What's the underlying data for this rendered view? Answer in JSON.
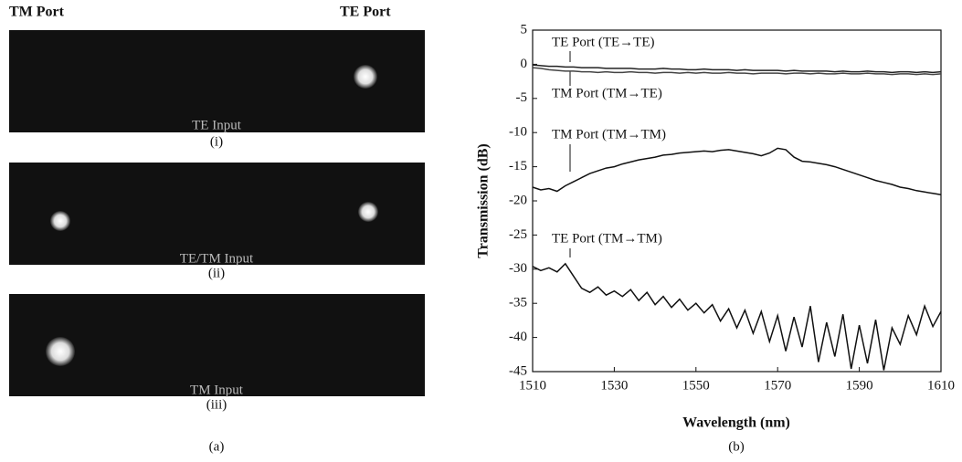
{
  "panel_a": {
    "left_port": "TM Port",
    "right_port": "TE Port",
    "images": [
      {
        "caption": "TE Input",
        "label": "(i)"
      },
      {
        "caption": "TE/TM Input",
        "label": "(ii)"
      },
      {
        "caption": "TM Input",
        "label": "(iii)"
      }
    ],
    "label": "(a)"
  },
  "chart_data": {
    "type": "line",
    "panel_label": "(b)",
    "x_label": "Wavelength (nm)",
    "y_label": "Transmission (dB)",
    "xlim": [
      1510,
      1610
    ],
    "xticks": [
      1510,
      1530,
      1550,
      1570,
      1590,
      1610
    ],
    "ylim": [
      -45,
      5
    ],
    "yticks": [
      5,
      0,
      -5,
      -10,
      -15,
      -20,
      -25,
      -30,
      -35,
      -40,
      -45
    ],
    "x": [
      1510,
      1512,
      1514,
      1516,
      1518,
      1520,
      1522,
      1524,
      1526,
      1528,
      1530,
      1532,
      1534,
      1536,
      1538,
      1540,
      1542,
      1544,
      1546,
      1548,
      1550,
      1552,
      1554,
      1556,
      1558,
      1560,
      1562,
      1564,
      1566,
      1568,
      1570,
      1572,
      1574,
      1576,
      1578,
      1580,
      1582,
      1584,
      1586,
      1588,
      1590,
      1592,
      1594,
      1596,
      1598,
      1600,
      1602,
      1604,
      1606,
      1608,
      1610
    ],
    "series": [
      {
        "name": "TE Port (TE→TE)",
        "color": "#222222",
        "values": [
          -0.1,
          -0.2,
          -0.3,
          -0.3,
          -0.4,
          -0.4,
          -0.5,
          -0.5,
          -0.5,
          -0.6,
          -0.6,
          -0.6,
          -0.6,
          -0.7,
          -0.7,
          -0.7,
          -0.6,
          -0.7,
          -0.7,
          -0.8,
          -0.8,
          -0.7,
          -0.8,
          -0.8,
          -0.8,
          -0.9,
          -0.8,
          -0.9,
          -0.9,
          -0.9,
          -0.9,
          -1.0,
          -0.9,
          -1.0,
          -1.0,
          -1.0,
          -1.0,
          -1.1,
          -1.0,
          -1.1,
          -1.1,
          -1.0,
          -1.1,
          -1.1,
          -1.2,
          -1.1,
          -1.1,
          -1.2,
          -1.1,
          -1.2,
          -1.1
        ]
      },
      {
        "name": "TM Port (TM→TE)",
        "color": "#444444",
        "values": [
          -0.5,
          -0.6,
          -0.8,
          -0.9,
          -1.0,
          -1.0,
          -1.1,
          -1.1,
          -1.2,
          -1.1,
          -1.2,
          -1.2,
          -1.1,
          -1.2,
          -1.2,
          -1.3,
          -1.2,
          -1.2,
          -1.3,
          -1.2,
          -1.3,
          -1.2,
          -1.3,
          -1.3,
          -1.2,
          -1.3,
          -1.3,
          -1.4,
          -1.3,
          -1.3,
          -1.3,
          -1.4,
          -1.3,
          -1.3,
          -1.4,
          -1.3,
          -1.4,
          -1.4,
          -1.3,
          -1.4,
          -1.4,
          -1.3,
          -1.4,
          -1.4,
          -1.5,
          -1.4,
          -1.4,
          -1.5,
          -1.4,
          -1.5,
          -1.4
        ]
      },
      {
        "name": "TM Port (TM→TM)",
        "color": "#111111",
        "values": [
          -18.0,
          -18.4,
          -18.2,
          -18.6,
          -17.8,
          -17.2,
          -16.6,
          -16.0,
          -15.6,
          -15.2,
          -15.0,
          -14.6,
          -14.3,
          -14.0,
          -13.8,
          -13.6,
          -13.3,
          -13.2,
          -13.0,
          -12.9,
          -12.8,
          -12.7,
          -12.8,
          -12.6,
          -12.5,
          -12.7,
          -12.9,
          -13.1,
          -13.4,
          -13.0,
          -12.3,
          -12.5,
          -13.6,
          -14.2,
          -14.3,
          -14.5,
          -14.7,
          -15.0,
          -15.4,
          -15.8,
          -16.2,
          -16.6,
          -17.0,
          -17.3,
          -17.6,
          -18.0,
          -18.2,
          -18.5,
          -18.7,
          -18.9,
          -19.1
        ]
      },
      {
        "name": "TE Port (TM→TM)",
        "color": "#111111",
        "values": [
          -29.6,
          -30.2,
          -29.8,
          -30.4,
          -29.2,
          -31.0,
          -32.8,
          -33.4,
          -32.6,
          -33.8,
          -33.2,
          -34.0,
          -33.0,
          -34.6,
          -33.4,
          -35.2,
          -34.0,
          -35.6,
          -34.4,
          -36.0,
          -35.0,
          -36.4,
          -35.2,
          -37.6,
          -35.8,
          -38.6,
          -36.0,
          -39.4,
          -36.2,
          -40.6,
          -36.8,
          -42.0,
          -37.0,
          -41.4,
          -35.4,
          -43.6,
          -37.8,
          -42.8,
          -36.6,
          -44.6,
          -38.2,
          -43.8,
          -37.4,
          -44.8,
          -38.6,
          -41.0,
          -36.8,
          -39.6,
          -35.4,
          -38.4,
          -36.2
        ]
      }
    ]
  }
}
